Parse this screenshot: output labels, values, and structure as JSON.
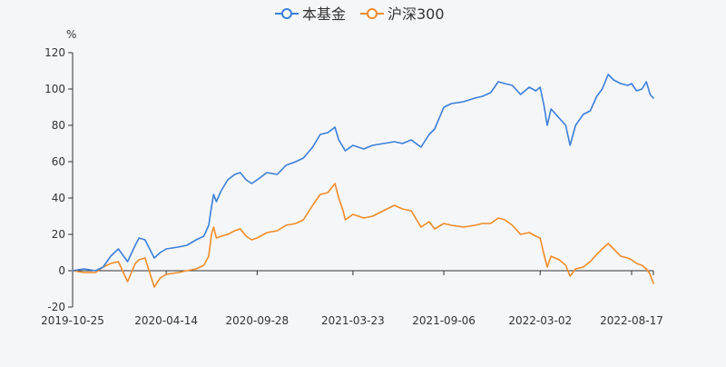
{
  "chart_data": {
    "type": "line",
    "title": "",
    "xlabel": "",
    "ylabel": "",
    "y_unit": "%",
    "ylim": [
      -20,
      120
    ],
    "y_ticks": [
      -20,
      0,
      20,
      40,
      60,
      80,
      100,
      120
    ],
    "xlim": [
      "2019-10-25",
      "2022-09-26"
    ],
    "x_ticks": [
      "2019-10-25",
      "2020-04-14",
      "2020-09-28",
      "2021-03-23",
      "2021-09-06",
      "2022-03-02",
      "2022-08-17"
    ],
    "grid": false,
    "legend_position": "top-center",
    "legend": [
      "本基金",
      "沪深300"
    ],
    "series": [
      {
        "name": "本基金",
        "color": "#3b7fd9",
        "points": [
          [
            "2019-10-25",
            0
          ],
          [
            "2019-11-15",
            1
          ],
          [
            "2019-12-06",
            0
          ],
          [
            "2019-12-20",
            2
          ],
          [
            "2020-01-03",
            8
          ],
          [
            "2020-01-17",
            12
          ],
          [
            "2020-02-03",
            5
          ],
          [
            "2020-02-17",
            14
          ],
          [
            "2020-02-24",
            18
          ],
          [
            "2020-03-06",
            17
          ],
          [
            "2020-03-23",
            7
          ],
          [
            "2020-04-03",
            10
          ],
          [
            "2020-04-14",
            12
          ],
          [
            "2020-05-06",
            13
          ],
          [
            "2020-05-22",
            14
          ],
          [
            "2020-06-08",
            17
          ],
          [
            "2020-06-22",
            19
          ],
          [
            "2020-07-01",
            25
          ],
          [
            "2020-07-06",
            35
          ],
          [
            "2020-07-10",
            42
          ],
          [
            "2020-07-15",
            38
          ],
          [
            "2020-07-24",
            44
          ],
          [
            "2020-08-05",
            50
          ],
          [
            "2020-08-18",
            53
          ],
          [
            "2020-08-28",
            54
          ],
          [
            "2020-09-08",
            50
          ],
          [
            "2020-09-18",
            48
          ],
          [
            "2020-09-28",
            50
          ],
          [
            "2020-10-16",
            54
          ],
          [
            "2020-11-04",
            53
          ],
          [
            "2020-11-20",
            58
          ],
          [
            "2020-12-08",
            60
          ],
          [
            "2020-12-22",
            62
          ],
          [
            "2021-01-08",
            68
          ],
          [
            "2021-01-22",
            75
          ],
          [
            "2021-02-05",
            76
          ],
          [
            "2021-02-18",
            79
          ],
          [
            "2021-02-25",
            72
          ],
          [
            "2021-03-05",
            68
          ],
          [
            "2021-03-09",
            66
          ],
          [
            "2021-03-23",
            69
          ],
          [
            "2021-04-12",
            67
          ],
          [
            "2021-04-28",
            69
          ],
          [
            "2021-05-18",
            70
          ],
          [
            "2021-06-07",
            71
          ],
          [
            "2021-06-22",
            70
          ],
          [
            "2021-07-08",
            72
          ],
          [
            "2021-07-26",
            68
          ],
          [
            "2021-08-10",
            75
          ],
          [
            "2021-08-20",
            78
          ],
          [
            "2021-09-06",
            90
          ],
          [
            "2021-09-20",
            92
          ],
          [
            "2021-10-12",
            93
          ],
          [
            "2021-11-02",
            95
          ],
          [
            "2021-11-16",
            96
          ],
          [
            "2021-12-01",
            98
          ],
          [
            "2021-12-15",
            104
          ],
          [
            "2021-12-27",
            103
          ],
          [
            "2022-01-10",
            102
          ],
          [
            "2022-01-25",
            97
          ],
          [
            "2022-02-10",
            101
          ],
          [
            "2022-02-22",
            99
          ],
          [
            "2022-03-02",
            101
          ],
          [
            "2022-03-09",
            91
          ],
          [
            "2022-03-15",
            80
          ],
          [
            "2022-03-22",
            89
          ],
          [
            "2022-04-06",
            84
          ],
          [
            "2022-04-18",
            80
          ],
          [
            "2022-04-26",
            69
          ],
          [
            "2022-05-06",
            80
          ],
          [
            "2022-05-20",
            86
          ],
          [
            "2022-06-02",
            88
          ],
          [
            "2022-06-14",
            96
          ],
          [
            "2022-06-24",
            100
          ],
          [
            "2022-07-05",
            108
          ],
          [
            "2022-07-15",
            105
          ],
          [
            "2022-07-28",
            103
          ],
          [
            "2022-08-10",
            102
          ],
          [
            "2022-08-17",
            103
          ],
          [
            "2022-08-26",
            99
          ],
          [
            "2022-09-05",
            100
          ],
          [
            "2022-09-13",
            104
          ],
          [
            "2022-09-20",
            97
          ],
          [
            "2022-09-26",
            95
          ]
        ]
      },
      {
        "name": "沪深300",
        "color": "#f08c28",
        "points": [
          [
            "2019-10-25",
            0
          ],
          [
            "2019-11-15",
            -1
          ],
          [
            "2019-12-06",
            -1
          ],
          [
            "2019-12-20",
            2
          ],
          [
            "2020-01-03",
            4
          ],
          [
            "2020-01-17",
            5
          ],
          [
            "2020-02-03",
            -6
          ],
          [
            "2020-02-17",
            4
          ],
          [
            "2020-02-24",
            6
          ],
          [
            "2020-03-06",
            7
          ],
          [
            "2020-03-23",
            -9
          ],
          [
            "2020-04-03",
            -4
          ],
          [
            "2020-04-14",
            -2
          ],
          [
            "2020-05-06",
            -1
          ],
          [
            "2020-05-22",
            0
          ],
          [
            "2020-06-08",
            1
          ],
          [
            "2020-06-22",
            3
          ],
          [
            "2020-07-01",
            8
          ],
          [
            "2020-07-06",
            20
          ],
          [
            "2020-07-10",
            24
          ],
          [
            "2020-07-15",
            18
          ],
          [
            "2020-07-24",
            19
          ],
          [
            "2020-08-05",
            20
          ],
          [
            "2020-08-18",
            22
          ],
          [
            "2020-08-28",
            23
          ],
          [
            "2020-09-08",
            19
          ],
          [
            "2020-09-18",
            17
          ],
          [
            "2020-09-28",
            18
          ],
          [
            "2020-10-16",
            21
          ],
          [
            "2020-11-04",
            22
          ],
          [
            "2020-11-20",
            25
          ],
          [
            "2020-12-08",
            26
          ],
          [
            "2020-12-22",
            28
          ],
          [
            "2021-01-08",
            36
          ],
          [
            "2021-01-22",
            42
          ],
          [
            "2021-02-05",
            43
          ],
          [
            "2021-02-18",
            48
          ],
          [
            "2021-02-25",
            40
          ],
          [
            "2021-03-05",
            33
          ],
          [
            "2021-03-09",
            28
          ],
          [
            "2021-03-23",
            31
          ],
          [
            "2021-04-12",
            29
          ],
          [
            "2021-04-28",
            30
          ],
          [
            "2021-05-18",
            33
          ],
          [
            "2021-06-07",
            36
          ],
          [
            "2021-06-22",
            34
          ],
          [
            "2021-07-08",
            33
          ],
          [
            "2021-07-26",
            24
          ],
          [
            "2021-08-10",
            27
          ],
          [
            "2021-08-20",
            23
          ],
          [
            "2021-09-06",
            26
          ],
          [
            "2021-09-20",
            25
          ],
          [
            "2021-10-12",
            24
          ],
          [
            "2021-11-02",
            25
          ],
          [
            "2021-11-16",
            26
          ],
          [
            "2021-12-01",
            26
          ],
          [
            "2021-12-15",
            29
          ],
          [
            "2021-12-27",
            28
          ],
          [
            "2022-01-10",
            25
          ],
          [
            "2022-01-25",
            20
          ],
          [
            "2022-02-10",
            21
          ],
          [
            "2022-02-22",
            19
          ],
          [
            "2022-03-02",
            18
          ],
          [
            "2022-03-09",
            9
          ],
          [
            "2022-03-15",
            2
          ],
          [
            "2022-03-22",
            8
          ],
          [
            "2022-04-06",
            6
          ],
          [
            "2022-04-18",
            3
          ],
          [
            "2022-04-26",
            -3
          ],
          [
            "2022-05-06",
            1
          ],
          [
            "2022-05-20",
            2
          ],
          [
            "2022-06-02",
            5
          ],
          [
            "2022-06-14",
            9
          ],
          [
            "2022-06-24",
            12
          ],
          [
            "2022-07-05",
            15
          ],
          [
            "2022-07-15",
            12
          ],
          [
            "2022-07-28",
            8
          ],
          [
            "2022-08-10",
            7
          ],
          [
            "2022-08-17",
            6
          ],
          [
            "2022-08-26",
            4
          ],
          [
            "2022-09-05",
            3
          ],
          [
            "2022-09-13",
            1
          ],
          [
            "2022-09-20",
            -2
          ],
          [
            "2022-09-26",
            -7
          ]
        ]
      }
    ]
  }
}
